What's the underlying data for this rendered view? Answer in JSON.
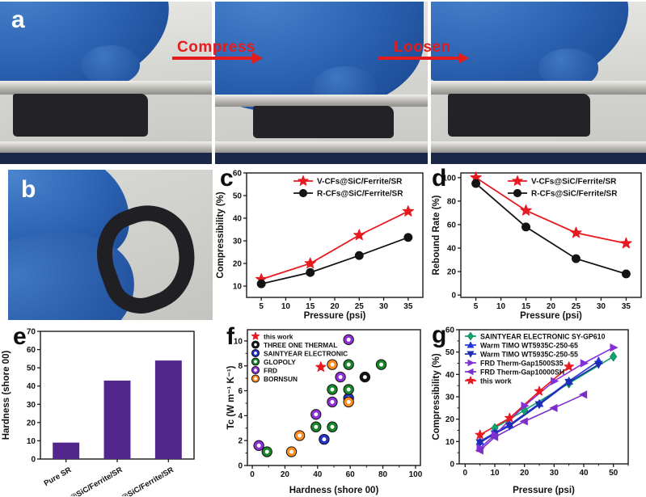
{
  "panel_labels": {
    "a": "a",
    "b": "b",
    "c": "c",
    "d": "d",
    "e": "e",
    "f": "f",
    "g": "g"
  },
  "photos": {
    "compress_label": "Compress",
    "loosen_label": "Loosen"
  },
  "colors": {
    "accent_red": "#e8191f",
    "glove_blue": "#2d64b4",
    "bar_purple": "#52268c"
  },
  "chart_data": [
    {
      "mount": "chart-c",
      "panel": "c",
      "type": "line",
      "xlabel": "Pressure (psi)",
      "ylabel": "Compressibility (%)",
      "xlim": [
        2,
        38
      ],
      "ylim": [
        5,
        60
      ],
      "xticks": [
        5,
        10,
        15,
        20,
        25,
        30,
        35
      ],
      "yticks": [
        10,
        20,
        30,
        40,
        50,
        60
      ],
      "legend_position": "top-inside",
      "series": [
        {
          "name": "V-CFs@SiC/Ferrite/SR",
          "marker": "star",
          "color": "#e8191f",
          "label_color": "#e8191f",
          "x": [
            5,
            15,
            25,
            35
          ],
          "y": [
            13,
            20,
            32.5,
            43
          ]
        },
        {
          "name": "R-CFs@SiC/Ferrite/SR",
          "marker": "circle",
          "color": "#141414",
          "label_color": "#141414",
          "x": [
            5,
            15,
            25,
            35
          ],
          "y": [
            11,
            16,
            23.5,
            31.5
          ]
        }
      ]
    },
    {
      "mount": "chart-d",
      "panel": "d",
      "type": "line",
      "xlabel": "Pressure (psi)",
      "ylabel": "Rebound Rate (%)",
      "xlim": [
        2,
        38
      ],
      "ylim": [
        -2,
        104
      ],
      "xticks": [
        5,
        10,
        15,
        20,
        25,
        30,
        35
      ],
      "yticks": [
        0,
        20,
        40,
        60,
        80,
        100
      ],
      "legend_position": "top-inside",
      "series": [
        {
          "name": "V-CFs@SiC/Ferrite/SR",
          "marker": "star",
          "color": "#e8191f",
          "label_color": "#e8191f",
          "x": [
            5,
            15,
            25,
            35
          ],
          "y": [
            100,
            72,
            53,
            44
          ]
        },
        {
          "name": "R-CFs@SiC/Ferrite/SR",
          "marker": "circle",
          "color": "#141414",
          "label_color": "#141414",
          "x": [
            5,
            15,
            25,
            35
          ],
          "y": [
            95,
            58,
            31,
            18
          ]
        }
      ]
    },
    {
      "mount": "chart-e",
      "panel": "e",
      "type": "bar",
      "xlabel": "",
      "ylabel": "Hardness (shore 00)",
      "categories": [
        "Pure SR",
        "V-CFs@SiC/Ferrite/SR",
        "R-CFs@SiC/Ferrite/SR"
      ],
      "values": [
        9,
        43,
        54
      ],
      "bar_color": "#52268c",
      "ylim": [
        0,
        70
      ],
      "yticks": [
        0,
        10,
        20,
        30,
        40,
        50,
        60,
        70
      ]
    },
    {
      "mount": "chart-f",
      "panel": "f",
      "type": "scatter",
      "xlabel": "Hardness (shore 00)",
      "ylabel": "Tc (W m⁻¹ K⁻¹)",
      "xlim": [
        -3,
        103
      ],
      "ylim": [
        0,
        10.9
      ],
      "xticks": [
        0,
        20,
        40,
        60,
        80,
        100
      ],
      "yticks": [
        0,
        2,
        4,
        6,
        8,
        10
      ],
      "legend_position": "top-left-inside",
      "series": [
        {
          "name": "this work",
          "marker": "star",
          "color": "#e8191f",
          "x": [
            42
          ],
          "y": [
            7.9
          ]
        },
        {
          "name": "THREE ONE THERMAL",
          "marker": "ring",
          "color": "#141414",
          "x": [
            69
          ],
          "y": [
            7.1
          ]
        },
        {
          "name": "SAINTYEAR ELECTRONIC",
          "marker": "ring",
          "color": "#2430cf",
          "x": [
            44,
            59
          ],
          "y": [
            2.1,
            5.4
          ]
        },
        {
          "name": "GLOPOLY",
          "marker": "ring",
          "color": "#17872a",
          "x": [
            9,
            39,
            49,
            49,
            59,
            59,
            79
          ],
          "y": [
            1.1,
            3.1,
            3.1,
            6.1,
            6.1,
            8.1,
            8.1
          ]
        },
        {
          "name": "FRD",
          "marker": "ring",
          "color": "#8f2fd6",
          "x": [
            4,
            39,
            49,
            54,
            59
          ],
          "y": [
            1.6,
            4.1,
            5.1,
            7.1,
            10.1
          ]
        },
        {
          "name": "BORNSUN",
          "marker": "ring",
          "color": "#ff8c1c",
          "x": [
            24,
            29,
            49,
            59
          ],
          "y": [
            1.1,
            2.4,
            8.1,
            5.1
          ]
        }
      ]
    },
    {
      "mount": "chart-g",
      "panel": "g",
      "type": "line",
      "xlabel": "Pressure (psi)",
      "ylabel": "Compressibility (%)",
      "xlim": [
        -2,
        55
      ],
      "ylim": [
        0,
        60
      ],
      "xticks": [
        0,
        10,
        20,
        30,
        40,
        50
      ],
      "yticks": [
        0,
        10,
        20,
        30,
        40,
        50,
        60
      ],
      "legend_position": "top-left-inside",
      "series": [
        {
          "name": "SAINTYEAR ELECTRONIC SY-GP610",
          "marker": "diamond",
          "color": "#10a36d",
          "x": [
            10,
            20,
            35,
            50
          ],
          "y": [
            16,
            24,
            36,
            48
          ]
        },
        {
          "name": "Warm TIMO WT5935C-250-65",
          "marker": "triangle-up",
          "color": "#2438d8",
          "x": [
            5,
            10,
            15,
            25,
            35,
            45
          ],
          "y": [
            10,
            14,
            17.5,
            27,
            37,
            46
          ]
        },
        {
          "name": "Warm TIMO WT5935C-250-55",
          "marker": "triangle-down",
          "color": "#1e2cb0",
          "x": [
            5,
            10,
            15,
            25,
            35,
            45
          ],
          "y": [
            9.5,
            13.5,
            17,
            26.5,
            36.5,
            44.5
          ]
        },
        {
          "name": "FRD Therm-Gap1500S35",
          "marker": "triangle-right",
          "color": "#8430da",
          "x": [
            5,
            10,
            20,
            30,
            40,
            50
          ],
          "y": [
            7,
            13,
            26,
            37,
            45,
            52
          ]
        },
        {
          "name": "FRD Therm-Gap10000SH",
          "marker": "triangle-left",
          "color": "#7b2ec9",
          "x": [
            5,
            10,
            20,
            30,
            40
          ],
          "y": [
            6,
            12,
            19,
            25,
            31
          ]
        },
        {
          "name": "this work",
          "marker": "star",
          "color": "#e8191f",
          "x": [
            5,
            15,
            25,
            35
          ],
          "y": [
            13,
            20.5,
            32.5,
            43.5
          ]
        }
      ]
    }
  ]
}
